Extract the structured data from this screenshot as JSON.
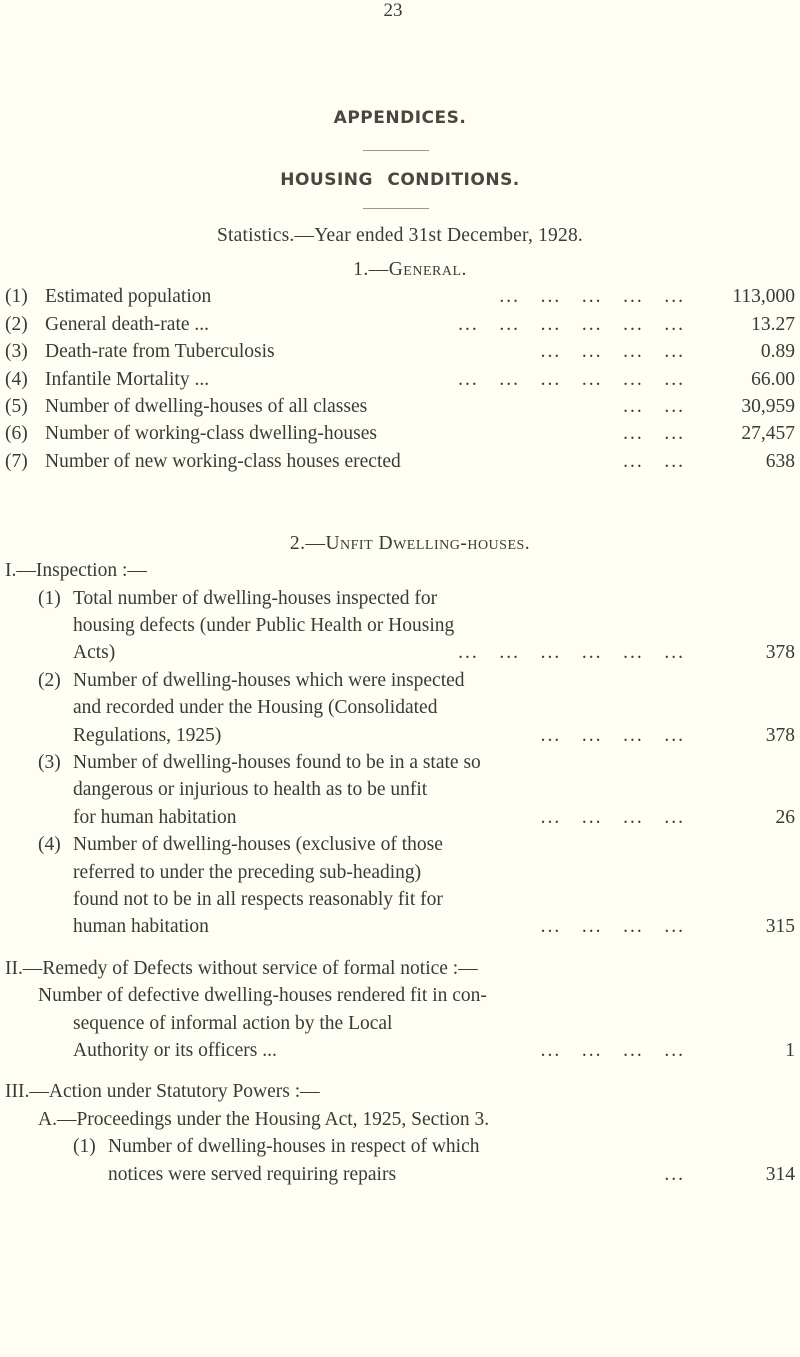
{
  "header": {
    "page_number": "23",
    "title": "APPENDICES.",
    "subtitle": "HOUSING CONDITIONS.",
    "statistics_line": "Statistics.—Year ended 31st December, 1928."
  },
  "general": {
    "heading": "1.—General.",
    "items": [
      {
        "num": "(1)",
        "text": "Estimated population",
        "leader": "...   ...   ...   ...   ...",
        "value": "113,000"
      },
      {
        "num": "(2)",
        "text": "General death-rate ...",
        "leader": "...   ...   ...   ...   ...   ...",
        "value": "13.27"
      },
      {
        "num": "(3)",
        "text": "Death-rate from Tuberculosis",
        "leader": "...   ...   ...   ...",
        "value": "0.89"
      },
      {
        "num": "(4)",
        "text": "Infantile Mortality ...",
        "leader": "...   ...   ...   ...   ...   ...",
        "value": "66.00"
      },
      {
        "num": "(5)",
        "text": "Number of dwelling-houses of all classes",
        "leader": "...   ...",
        "value": "30,959"
      },
      {
        "num": "(6)",
        "text": "Number of working-class dwelling-houses",
        "leader": "...   ...",
        "value": "27,457"
      },
      {
        "num": "(7)",
        "text": "Number of new working-class houses erected",
        "leader": "...   ...",
        "value": "638"
      }
    ]
  },
  "unfit": {
    "heading": "2.—Unfit Dwelling-houses.",
    "inspection": {
      "heading": "I.—Inspection :—",
      "items": [
        {
          "num": "(1)",
          "lines": [
            "Total number of dwelling-houses inspected for",
            "housing defects (under Public Health or Housing",
            "Acts)"
          ],
          "leader": "...   ...   ...   ...   ...   ...",
          "value": "378"
        },
        {
          "num": "(2)",
          "lines": [
            "Number of dwelling-houses which were inspected",
            "and recorded under the Housing (Consolidated",
            "Regulations, 1925)"
          ],
          "leader": "...   ...   ...   ...",
          "value": "378"
        },
        {
          "num": "(3)",
          "lines": [
            "Number of dwelling-houses found to be in a state so",
            "dangerous or injurious to health as to be unfit",
            "for human habitation"
          ],
          "leader": "...   ...   ...   ...",
          "value": "26"
        },
        {
          "num": "(4)",
          "lines": [
            "Number of dwelling-houses (exclusive of those",
            "referred to under the preceding sub-heading)",
            "found not to be in all respects reasonably fit for",
            "human habitation"
          ],
          "leader": "...   ...   ...   ...",
          "value": "315"
        }
      ]
    },
    "remedy": {
      "heading": "II.—Remedy of Defects without service of formal notice :—",
      "lines": [
        "Number of defective dwelling-houses rendered fit in con-",
        "sequence of informal action by the Local",
        "Authority or its officers ..."
      ],
      "leader": "...   ...   ...   ...",
      "value": "1"
    },
    "action": {
      "heading": "III.—Action under Statutory Powers :—",
      "sub_heading": "A.—Proceedings under the Housing Act, 1925, Section 3.",
      "items": [
        {
          "num": "(1)",
          "lines": [
            "Number of dwelling-houses in respect of which",
            "notices were served requiring repairs"
          ],
          "leader": "...",
          "value": "314"
        }
      ]
    }
  }
}
